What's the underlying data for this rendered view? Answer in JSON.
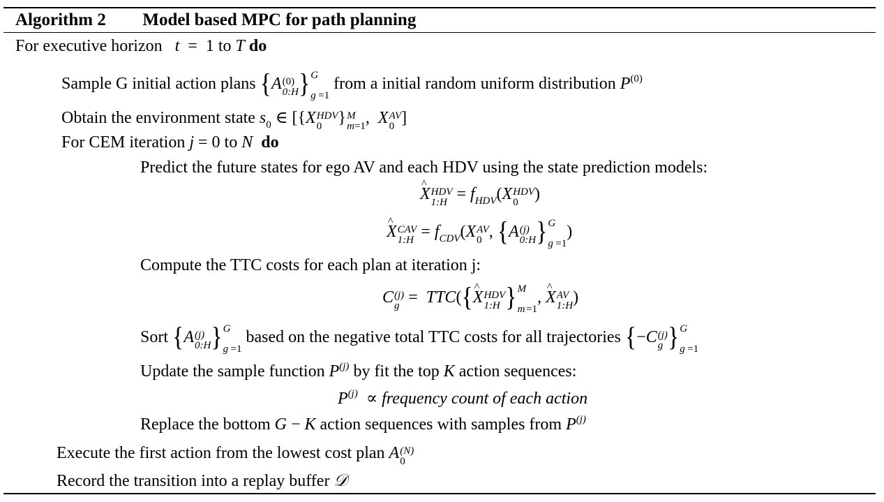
{
  "header": {
    "label": "Algorithm 2",
    "title": "Model based MPC for path planning"
  },
  "lines": {
    "l1": "For executive horizon",
    "l1_do": "do",
    "l2_pre": "Sample G initial action plans",
    "l2_post": "from a initial random uniform distribution",
    "l3_pre": "Obtain the environment state",
    "l4_pre": "For CEM iteration",
    "l4_do": "do",
    "l5": "Predict the future states for ego AV and each HDV using the state prediction models:",
    "l8": "Compute the TTC costs for each plan at iteration j:",
    "l10_pre": "Sort",
    "l10_mid": "based on the negative total TTC costs for all trajectories",
    "l11_pre": "Update the sample function",
    "l11_post": "by fit the top",
    "l11_end": "action sequences:",
    "l12": "frequency count of each action",
    "l13_pre": "Replace the bottom",
    "l13_post": "action sequences with samples from",
    "l14": "Execute the first action from the lowest cost plan",
    "l15": "Record the transition into a replay buffer"
  }
}
